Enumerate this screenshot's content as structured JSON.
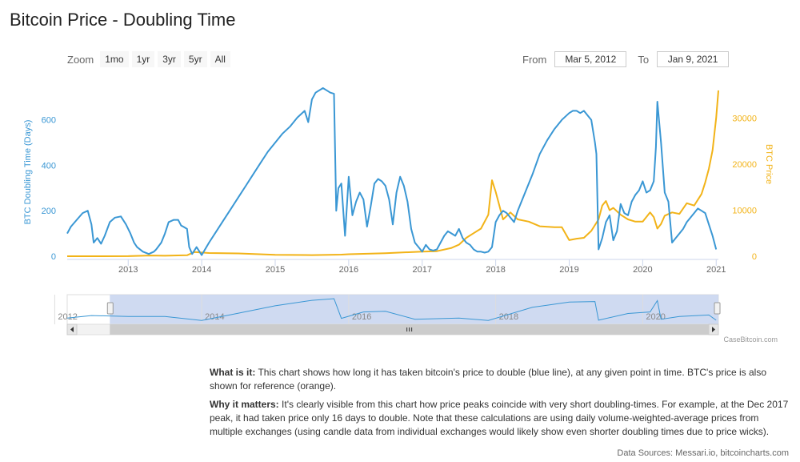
{
  "page": {
    "title": "Bitcoin Price - Doubling Time"
  },
  "zoom": {
    "label": "Zoom",
    "buttons": [
      "1mo",
      "1yr",
      "3yr",
      "5yr",
      "All"
    ]
  },
  "range": {
    "from_label": "From",
    "from_value": "Mar 5, 2012",
    "to_label": "To",
    "to_value": "Jan 9, 2021"
  },
  "credit": "CaseBitcoin.com",
  "description": {
    "what_title": "What is it:",
    "what_text": " This chart shows how long it has taken bitcoin's price to double (blue line), at any given point in time. BTC's price is also shown for reference (orange).",
    "why_title": "Why it matters:",
    "why_text": " It's clearly visible from this chart how price peaks coincide with very short doubling-times. For example, at the Dec 2017 peak, it had taken price only 16 days to double. Note that these calculations are using daily volume-weighted-average prices from multiple exchanges (using candle data from individual exchanges would likely show even shorter doubling times due to price wicks)."
  },
  "sources": "Data Sources: Messari.io, bitcoincharts.com",
  "colors": {
    "doubling": "#3a97d4",
    "price": "#f2b318",
    "navigator_fill": "#c7d3ef"
  },
  "chart_data": {
    "type": "line",
    "x_range": [
      2012.17,
      2021.03
    ],
    "x_ticks": [
      "2013",
      "2014",
      "2015",
      "2016",
      "2017",
      "2018",
      "2019",
      "2020",
      "2021"
    ],
    "y_left": {
      "label": "BTC Doubling Time (Days)",
      "ticks": [
        "0",
        "200",
        "400",
        "600"
      ],
      "range": [
        0,
        740
      ]
    },
    "y_right": {
      "label": "BTC Price",
      "ticks": [
        "0",
        "10000",
        "20000",
        "30000"
      ],
      "range": [
        0,
        36500
      ]
    },
    "navigator_ticks": [
      "2012",
      "2014",
      "2016",
      "2018",
      "2020"
    ],
    "series": [
      {
        "axis": "left",
        "x": [
          2012.17,
          2012.22,
          2012.3,
          2012.38,
          2012.45,
          2012.5,
          2012.53,
          2012.58,
          2012.63,
          2012.68,
          2012.75,
          2012.82,
          2012.9,
          2012.97,
          2013.03,
          2013.08,
          2013.12,
          2013.2,
          2013.28,
          2013.35,
          2013.38,
          2013.45,
          2013.5,
          2013.55,
          2013.62,
          2013.68,
          2013.72,
          2013.75,
          2013.8,
          2013.83,
          2013.87,
          2013.93,
          2014.0,
          2014.1,
          2014.2,
          2014.3,
          2014.4,
          2014.5,
          2014.6,
          2014.7,
          2014.8,
          2014.9,
          2015.0,
          2015.1,
          2015.2,
          2015.3,
          2015.4,
          2015.45,
          2015.5,
          2015.55,
          2015.6,
          2015.65,
          2015.7,
          2015.75,
          2015.8,
          2015.83,
          2015.86,
          2015.9,
          2015.95,
          2016.0,
          2016.05,
          2016.1,
          2016.15,
          2016.2,
          2016.25,
          2016.3,
          2016.35,
          2016.4,
          2016.45,
          2016.5,
          2016.55,
          2016.6,
          2016.65,
          2016.7,
          2016.75,
          2016.8,
          2016.85,
          2016.9,
          2016.95,
          2017.0,
          2017.05,
          2017.1,
          2017.15,
          2017.2,
          2017.25,
          2017.3,
          2017.35,
          2017.4,
          2017.45,
          2017.5,
          2017.55,
          2017.6,
          2017.65,
          2017.7,
          2017.75,
          2017.8,
          2017.85,
          2017.9,
          2017.95,
          2018.0,
          2018.05,
          2018.1,
          2018.15,
          2018.2,
          2018.25,
          2018.3,
          2018.4,
          2018.5,
          2018.6,
          2018.7,
          2018.8,
          2018.9,
          2019.0,
          2019.05,
          2019.1,
          2019.15,
          2019.2,
          2019.25,
          2019.3,
          2019.35,
          2019.37,
          2019.4,
          2019.45,
          2019.5,
          2019.55,
          2019.6,
          2019.65,
          2019.7,
          2019.75,
          2019.8,
          2019.85,
          2019.9,
          2019.95,
          2020.0,
          2020.05,
          2020.1,
          2020.15,
          2020.18,
          2020.2,
          2020.25,
          2020.3,
          2020.35,
          2020.4,
          2020.45,
          2020.5,
          2020.55,
          2020.6,
          2020.65,
          2020.7,
          2020.75,
          2020.8,
          2020.85,
          2020.9,
          2020.95,
          2021.0
        ],
        "y": [
          100,
          130,
          160,
          190,
          200,
          140,
          60,
          80,
          55,
          90,
          150,
          170,
          175,
          140,
          100,
          60,
          40,
          20,
          10,
          20,
          30,
          60,
          100,
          150,
          160,
          160,
          135,
          130,
          120,
          40,
          10,
          40,
          5,
          60,
          110,
          160,
          210,
          260,
          310,
          360,
          410,
          460,
          500,
          540,
          570,
          610,
          640,
          590,
          690,
          720,
          730,
          740,
          730,
          720,
          715,
          200,
          300,
          320,
          90,
          350,
          180,
          240,
          280,
          250,
          130,
          220,
          320,
          340,
          330,
          310,
          250,
          140,
          280,
          350,
          310,
          240,
          120,
          60,
          40,
          20,
          50,
          30,
          25,
          30,
          60,
          90,
          110,
          100,
          90,
          120,
          80,
          60,
          50,
          30,
          20,
          20,
          16,
          20,
          40,
          150,
          180,
          200,
          190,
          170,
          150,
          200,
          280,
          360,
          450,
          510,
          560,
          600,
          630,
          640,
          640,
          630,
          640,
          620,
          600,
          500,
          450,
          30,
          80,
          150,
          180,
          70,
          110,
          230,
          190,
          180,
          240,
          270,
          290,
          330,
          280,
          290,
          330,
          480,
          680,
          500,
          280,
          240,
          60,
          80,
          100,
          120,
          150,
          170,
          190,
          210,
          200,
          190,
          140,
          90,
          30
        ]
      },
      {
        "axis": "right",
        "x": [
          2012.17,
          2012.5,
          2013.0,
          2013.3,
          2013.5,
          2013.8,
          2013.9,
          2014.0,
          2014.1,
          2014.5,
          2015.0,
          2015.5,
          2015.9,
          2016.0,
          2016.5,
          2017.0,
          2017.2,
          2017.4,
          2017.5,
          2017.6,
          2017.7,
          2017.8,
          2017.9,
          2017.95,
          2018.0,
          2018.05,
          2018.1,
          2018.2,
          2018.3,
          2018.45,
          2018.6,
          2018.8,
          2018.9,
          2019.0,
          2019.1,
          2019.2,
          2019.3,
          2019.4,
          2019.45,
          2019.5,
          2019.55,
          2019.6,
          2019.7,
          2019.8,
          2019.9,
          2020.0,
          2020.1,
          2020.15,
          2020.2,
          2020.25,
          2020.3,
          2020.4,
          2020.5,
          2020.6,
          2020.7,
          2020.8,
          2020.85,
          2020.9,
          2020.95,
          2021.0,
          2021.03
        ],
        "y": [
          5,
          7,
          13,
          150,
          100,
          200,
          900,
          800,
          700,
          600,
          300,
          250,
          350,
          430,
          650,
          1000,
          1100,
          1800,
          2500,
          4000,
          5000,
          6000,
          9000,
          16500,
          14000,
          11000,
          8000,
          9500,
          8000,
          7500,
          6500,
          6300,
          6300,
          3500,
          3800,
          4000,
          5500,
          8000,
          11000,
          12000,
          10000,
          10500,
          9000,
          8000,
          7500,
          7500,
          9500,
          8500,
          6000,
          7000,
          8800,
          9500,
          9200,
          11500,
          11000,
          13500,
          16000,
          19000,
          23000,
          30000,
          36000
        ]
      }
    ],
    "navigator_series": {
      "x": [
        2012.17,
        2012.5,
        2013.0,
        2013.5,
        2014.0,
        2014.5,
        2015.0,
        2015.5,
        2015.8,
        2015.9,
        2016.2,
        2016.5,
        2016.9,
        2017.5,
        2017.9,
        2018.5,
        2019.0,
        2019.35,
        2019.4,
        2019.8,
        2020.1,
        2020.2,
        2020.25,
        2020.5,
        2020.9,
        2021.0
      ],
      "y": [
        100,
        180,
        150,
        150,
        20,
        260,
        500,
        680,
        735,
        90,
        300,
        320,
        60,
        100,
        20,
        450,
        620,
        640,
        30,
        250,
        300,
        670,
        60,
        150,
        200,
        30
      ]
    },
    "navigator_window": [
      2012.75,
      2021.03
    ]
  }
}
